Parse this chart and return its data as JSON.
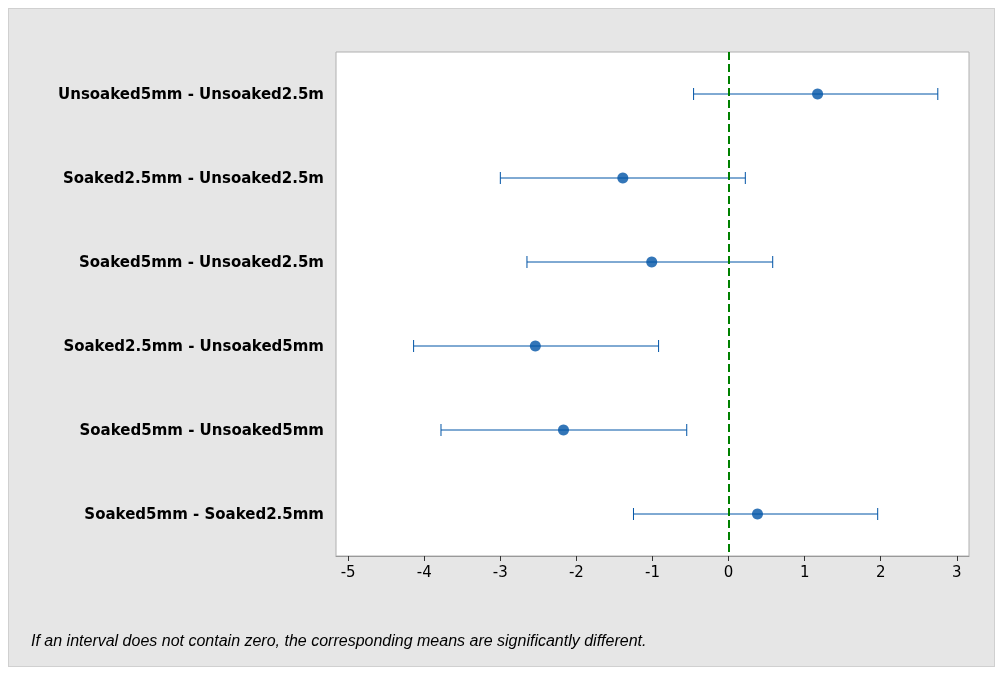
{
  "chart_data": {
    "type": "scatter",
    "orientation": "horizontal",
    "categories": [
      "Unsoaked5mm - Unsoaked2.5m",
      "Soaked2.5mm - Unsoaked2.5m",
      "Soaked5mm - Unsoaked2.5m",
      "Soaked2.5mm - Unsoaked5mm",
      "Soaked5mm - Unsoaked5mm",
      "Soaked5mm - Soaked2.5mm"
    ],
    "series": [
      {
        "color": "#0054a6",
        "values": [
          1.17,
          -1.39,
          -1.01,
          -2.54,
          -2.17,
          0.38
        ],
        "errors": [
          [
            -0.46,
            2.75
          ],
          [
            -3.0,
            0.22
          ],
          [
            -2.65,
            0.58
          ],
          [
            -4.14,
            -0.92
          ],
          [
            -3.78,
            -0.55
          ],
          [
            -1.25,
            1.96
          ]
        ]
      }
    ],
    "xlim": [
      -5.16,
      3.16
    ],
    "xticks": [
      -5,
      -4,
      -3,
      -2,
      -1,
      0,
      1,
      2,
      3
    ],
    "ref_lines": [
      {
        "axis": "x",
        "value": 0,
        "color": "#008000",
        "line_style": "dashed"
      }
    ],
    "annotations": [
      "If an interval does not contain zero, the corresponding means are significantly different."
    ],
    "marker": "circle",
    "grid": false
  }
}
